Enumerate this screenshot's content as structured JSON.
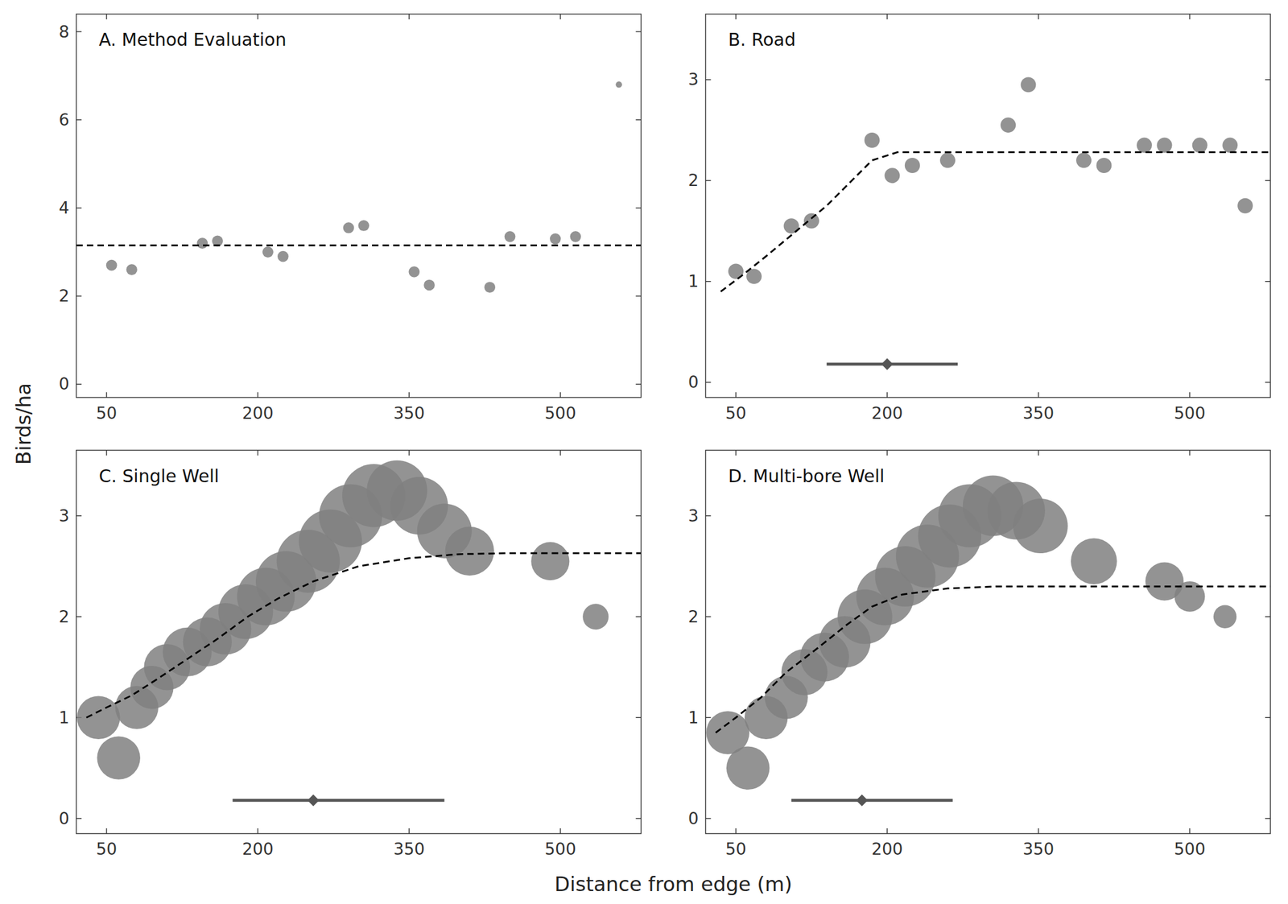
{
  "chart_data": {
    "xlabel": "Distance from edge (m)",
    "ylabel": "Birds/ha",
    "charts": [
      {
        "type": "scatter",
        "title": "A. Method Evaluation",
        "xlim": [
          20,
          580
        ],
        "xticks": [
          50,
          200,
          350,
          500
        ],
        "ylim": [
          -0.3,
          8.4
        ],
        "yticks": [
          0,
          2,
          4,
          6,
          8
        ],
        "series": [
          {
            "type": "scatter",
            "color": "#808080",
            "x": [
              55,
              75,
              145,
              160,
              210,
              225,
              290,
              305,
              355,
              370,
              430,
              450,
              495,
              515,
              558
            ],
            "values": [
              2.7,
              2.6,
              3.2,
              3.25,
              3.0,
              2.9,
              3.55,
              3.6,
              2.55,
              2.25,
              2.2,
              3.35,
              3.3,
              3.35,
              6.8
            ],
            "sizes": [
              180,
              180,
              180,
              180,
              180,
              180,
              180,
              180,
              180,
              180,
              180,
              180,
              180,
              180,
              60
            ]
          },
          {
            "type": "line",
            "color": "#000000",
            "line_style": "dashed",
            "x": [
              20,
              580
            ],
            "values": [
              3.15,
              3.15
            ]
          }
        ]
      },
      {
        "type": "scatter",
        "title": "B. Road",
        "xlim": [
          20,
          580
        ],
        "xticks": [
          50,
          200,
          350,
          500
        ],
        "ylim": [
          -0.15,
          3.65
        ],
        "yticks": [
          0,
          1,
          2,
          3
        ],
        "series": [
          {
            "type": "scatter",
            "color": "#808080",
            "x": [
              50,
              68,
              105,
              125,
              185,
              205,
              225,
              260,
              320,
              340,
              395,
              415,
              455,
              475,
              510,
              540,
              555
            ],
            "values": [
              1.1,
              1.05,
              1.55,
              1.6,
              2.4,
              2.05,
              2.15,
              2.2,
              2.55,
              2.95,
              2.2,
              2.15,
              2.35,
              2.35,
              2.35,
              2.35,
              1.75
            ],
            "sizes": [
              350,
              350,
              350,
              350,
              350,
              350,
              350,
              350,
              350,
              350,
              350,
              350,
              350,
              350,
              350,
              350,
              350
            ]
          },
          {
            "type": "line",
            "color": "#000000",
            "line_style": "dashed",
            "x": [
              35,
              55,
              80,
              110,
              140,
              165,
              185,
              210,
              250,
              300,
              350,
              400,
              450,
              500,
              550,
              580
            ],
            "values": [
              0.9,
              1.05,
              1.25,
              1.5,
              1.75,
              2.0,
              2.2,
              2.28,
              2.28,
              2.28,
              2.28,
              2.28,
              2.28,
              2.28,
              2.28,
              2.28
            ]
          },
          {
            "type": "interval",
            "color": "#555555",
            "marker": "diamond",
            "center": 200,
            "low": 140,
            "high": 270,
            "y": 0.18
          }
        ]
      },
      {
        "type": "scatter",
        "title": "C. Single Well",
        "xlim": [
          20,
          580
        ],
        "xticks": [
          50,
          200,
          350,
          500
        ],
        "ylim": [
          -0.15,
          3.65
        ],
        "yticks": [
          0,
          1,
          2,
          3
        ],
        "series": [
          {
            "type": "scatter",
            "color": "#808080",
            "x": [
              42,
              62,
              80,
              95,
              110,
              130,
              150,
              168,
              188,
              208,
              228,
              250,
              272,
              292,
              315,
              338,
              360,
              385,
              410,
              490,
              535
            ],
            "values": [
              1.0,
              0.6,
              1.1,
              1.3,
              1.5,
              1.65,
              1.75,
              1.88,
              2.05,
              2.2,
              2.35,
              2.55,
              2.75,
              3.0,
              3.2,
              3.25,
              3.1,
              2.85,
              2.65,
              2.55,
              2.0
            ],
            "sizes": [
              2800,
              2800,
              2800,
              2800,
              3200,
              3600,
              3600,
              4000,
              4500,
              5000,
              5500,
              6000,
              6000,
              6000,
              6000,
              5500,
              5000,
              4500,
              3600,
              2200,
              1000
            ]
          },
          {
            "type": "line",
            "color": "#000000",
            "line_style": "dashed",
            "x": [
              30,
              50,
              75,
              100,
              130,
              160,
              190,
              220,
              255,
              300,
              350,
              400,
              450,
              500,
              550,
              580
            ],
            "values": [
              1.0,
              1.1,
              1.22,
              1.38,
              1.58,
              1.78,
              2.0,
              2.18,
              2.35,
              2.5,
              2.58,
              2.62,
              2.63,
              2.63,
              2.63,
              2.63
            ]
          },
          {
            "type": "interval",
            "color": "#555555",
            "marker": "diamond",
            "center": 255,
            "low": 175,
            "high": 385,
            "y": 0.18
          }
        ]
      },
      {
        "type": "scatter",
        "title": "D. Multi-bore Well",
        "xlim": [
          20,
          580
        ],
        "xticks": [
          50,
          200,
          350,
          500
        ],
        "ylim": [
          -0.15,
          3.65
        ],
        "yticks": [
          0,
          1,
          2,
          3
        ],
        "series": [
          {
            "type": "scatter",
            "color": "#808080",
            "x": [
              42,
              62,
              80,
              100,
              118,
              138,
              158,
              178,
              198,
              218,
              240,
              262,
              282,
              305,
              328,
              352,
              405,
              475,
              500,
              535
            ],
            "values": [
              0.85,
              0.5,
              1.0,
              1.2,
              1.45,
              1.6,
              1.75,
              2.0,
              2.2,
              2.4,
              2.6,
              2.8,
              3.0,
              3.1,
              3.05,
              2.9,
              2.55,
              2.35,
              2.2,
              2.0
            ],
            "sizes": [
              2800,
              2800,
              2800,
              2800,
              3200,
              3600,
              4000,
              4500,
              5000,
              5500,
              6000,
              6000,
              6000,
              5500,
              5000,
              4500,
              3200,
              2200,
              1400,
              800
            ]
          },
          {
            "type": "line",
            "color": "#000000",
            "line_style": "dashed",
            "x": [
              30,
              50,
              75,
              100,
              130,
              160,
              185,
              215,
              260,
              310,
              360,
              410,
              460,
              510,
              555,
              580
            ],
            "values": [
              0.85,
              1.0,
              1.2,
              1.45,
              1.68,
              1.92,
              2.1,
              2.22,
              2.28,
              2.3,
              2.3,
              2.3,
              2.3,
              2.3,
              2.3,
              2.3
            ]
          },
          {
            "type": "interval",
            "color": "#555555",
            "marker": "diamond",
            "center": 175,
            "low": 105,
            "high": 265,
            "y": 0.18
          }
        ]
      }
    ]
  }
}
